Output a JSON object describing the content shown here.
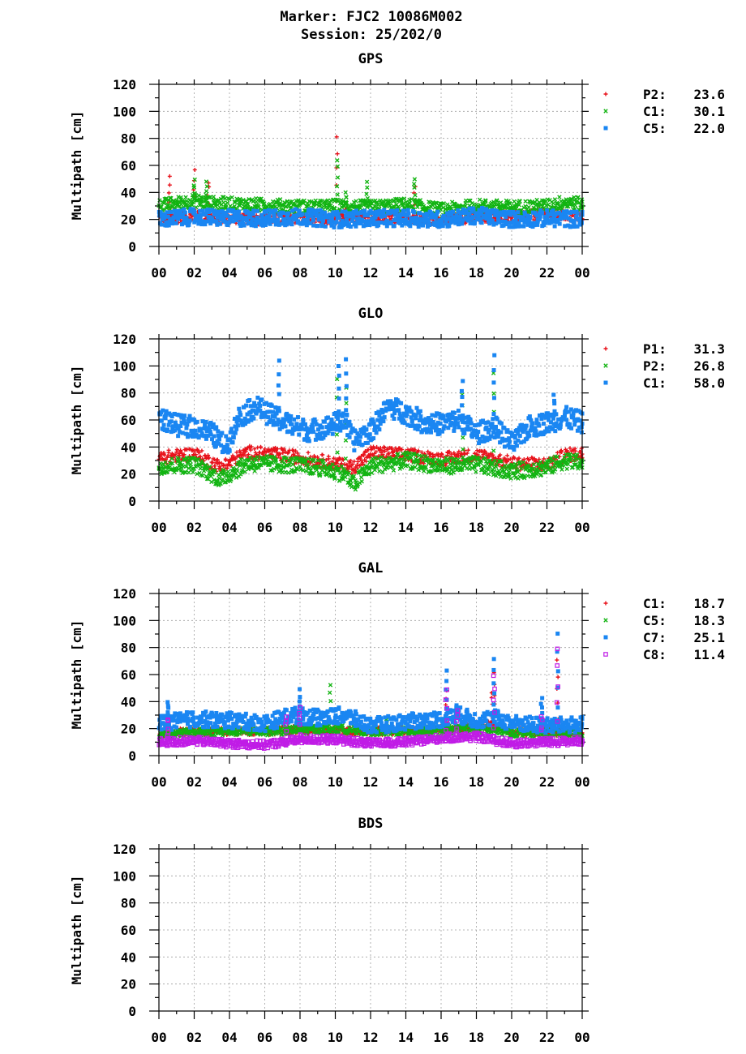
{
  "header": {
    "title": "Marker: FJC2 10086M002",
    "subtitle": "Session: 25/202/0"
  },
  "colors": {
    "red": "#e8121b",
    "green": "#12b412",
    "blue": "#1a86f2",
    "magenta": "#c01ce6"
  },
  "chart_data": [
    {
      "type": "scatter",
      "title": "GPS",
      "ylabel": "Multipath [cm]",
      "xlabel": "",
      "ylim": [
        0,
        120
      ],
      "xlim": [
        0,
        24
      ],
      "yticks": [
        "0",
        "20",
        "40",
        "60",
        "80",
        "100",
        "120"
      ],
      "xticks": [
        "00",
        "02",
        "04",
        "06",
        "08",
        "10",
        "12",
        "14",
        "16",
        "18",
        "20",
        "22",
        "00"
      ],
      "grid": true,
      "legend_position": "right",
      "series": [
        {
          "name": "P2:",
          "value_label": "23.6",
          "marker": "plus",
          "color": "#e8121b",
          "baseline": [
            [
              0,
              21
            ],
            [
              2,
              22
            ],
            [
              4,
              21
            ],
            [
              6,
              20
            ],
            [
              8,
              21
            ],
            [
              10,
              20
            ],
            [
              12,
              22
            ],
            [
              14,
              21
            ],
            [
              16,
              19
            ],
            [
              18,
              22
            ],
            [
              20,
              22
            ],
            [
              22,
              24
            ],
            [
              24,
              22
            ]
          ],
          "spread": 4,
          "spikes": [
            [
              0.6,
              51
            ],
            [
              2.0,
              56
            ],
            [
              2.8,
              48
            ],
            [
              10.1,
              82
            ],
            [
              10.6,
              28
            ],
            [
              14.5,
              45
            ]
          ]
        },
        {
          "name": "C1:",
          "value_label": "30.1",
          "marker": "cross",
          "color": "#12b412",
          "baseline": [
            [
              0,
              30
            ],
            [
              2,
              34
            ],
            [
              3,
              32
            ],
            [
              5,
              31
            ],
            [
              7,
              30
            ],
            [
              9,
              29
            ],
            [
              10,
              30
            ],
            [
              12,
              29
            ],
            [
              14,
              31
            ],
            [
              16,
              27
            ],
            [
              18,
              30
            ],
            [
              20,
              29
            ],
            [
              22,
              30
            ],
            [
              23,
              33
            ],
            [
              24,
              31
            ]
          ],
          "spread": 5,
          "spikes": [
            [
              2.0,
              49
            ],
            [
              2.7,
              48
            ],
            [
              10.1,
              65
            ],
            [
              10.6,
              40
            ],
            [
              11.8,
              47
            ],
            [
              14.5,
              51
            ]
          ]
        },
        {
          "name": "C5:",
          "value_label": "22.0",
          "marker": "square",
          "color": "#1a86f2",
          "baseline": [
            [
              0,
              20
            ],
            [
              2,
              22
            ],
            [
              4,
              21
            ],
            [
              6,
              21
            ],
            [
              8,
              22
            ],
            [
              10,
              20
            ],
            [
              12,
              21
            ],
            [
              14,
              21
            ],
            [
              16,
              20
            ],
            [
              18,
              23
            ],
            [
              20,
              20
            ],
            [
              22,
              21
            ],
            [
              24,
              20
            ]
          ],
          "spread": 6,
          "spikes": []
        }
      ]
    },
    {
      "type": "scatter",
      "title": "GLO",
      "ylabel": "Multipath [cm]",
      "xlabel": "",
      "ylim": [
        0,
        120
      ],
      "xlim": [
        0,
        24
      ],
      "yticks": [
        "0",
        "20",
        "40",
        "60",
        "80",
        "100",
        "120"
      ],
      "xticks": [
        "00",
        "02",
        "04",
        "06",
        "08",
        "10",
        "12",
        "14",
        "16",
        "18",
        "20",
        "22",
        "00"
      ],
      "grid": true,
      "legend_position": "right",
      "series": [
        {
          "name": "P1:",
          "value_label": "31.3",
          "marker": "plus",
          "color": "#e8121b",
          "baseline": [
            [
              0,
              32
            ],
            [
              2,
              35
            ],
            [
              3.5,
              25
            ],
            [
              5,
              36
            ],
            [
              7,
              34
            ],
            [
              9,
              30
            ],
            [
              11,
              25
            ],
            [
              12,
              36
            ],
            [
              14,
              34
            ],
            [
              16,
              31
            ],
            [
              18,
              34
            ],
            [
              20,
              28
            ],
            [
              22,
              27
            ],
            [
              23,
              34
            ],
            [
              24,
              35
            ]
          ],
          "spread": 5,
          "spikes": []
        },
        {
          "name": "P2:",
          "value_label": "26.8",
          "marker": "cross",
          "color": "#12b412",
          "baseline": [
            [
              0,
              26
            ],
            [
              2,
              27
            ],
            [
              3.5,
              16
            ],
            [
              5,
              28
            ],
            [
              7,
              27
            ],
            [
              9,
              25
            ],
            [
              10.5,
              20
            ],
            [
              11,
              12
            ],
            [
              12,
              26
            ],
            [
              14,
              30
            ],
            [
              16,
              26
            ],
            [
              18,
              27
            ],
            [
              20,
              22
            ],
            [
              22,
              25
            ],
            [
              23,
              30
            ],
            [
              24,
              28
            ]
          ],
          "spread": 6,
          "spikes": [
            [
              10.1,
              90
            ],
            [
              10.6,
              85
            ],
            [
              17.2,
              80
            ],
            [
              19.0,
              95
            ]
          ]
        },
        {
          "name": "C1:",
          "value_label": "58.0",
          "marker": "square",
          "color": "#1a86f2",
          "baseline": [
            [
              0,
              62
            ],
            [
              1,
              56
            ],
            [
              2,
              55
            ],
            [
              3,
              50
            ],
            [
              3.8,
              40
            ],
            [
              4.5,
              62
            ],
            [
              5.5,
              70
            ],
            [
              6.5,
              62
            ],
            [
              7.5,
              56
            ],
            [
              8.5,
              52
            ],
            [
              9.5,
              55
            ],
            [
              10.5,
              60
            ],
            [
              11,
              45
            ],
            [
              12,
              52
            ],
            [
              13,
              70
            ],
            [
              14,
              65
            ],
            [
              15,
              58
            ],
            [
              16,
              57
            ],
            [
              17,
              60
            ],
            [
              18,
              50
            ],
            [
              19,
              55
            ],
            [
              20,
              42
            ],
            [
              21,
              55
            ],
            [
              22,
              58
            ],
            [
              23,
              62
            ],
            [
              24,
              58
            ]
          ],
          "spread": 8,
          "spikes": [
            [
              6.8,
              104
            ],
            [
              10.2,
              100
            ],
            [
              10.6,
              105
            ],
            [
              17.2,
              88
            ],
            [
              19.0,
              107
            ],
            [
              22.4,
              79
            ]
          ]
        }
      ]
    },
    {
      "type": "scatter",
      "title": "GAL",
      "ylabel": "Multipath [cm]",
      "xlabel": "",
      "ylim": [
        0,
        120
      ],
      "xlim": [
        0,
        24
      ],
      "yticks": [
        "0",
        "20",
        "40",
        "60",
        "80",
        "100",
        "120"
      ],
      "xticks": [
        "00",
        "02",
        "04",
        "06",
        "08",
        "10",
        "12",
        "14",
        "16",
        "18",
        "20",
        "22",
        "00"
      ],
      "grid": true,
      "legend_position": "right",
      "series": [
        {
          "name": "C1:",
          "value_label": "18.7",
          "marker": "plus",
          "color": "#e8121b",
          "baseline": [
            [
              0,
              17
            ],
            [
              4,
              18
            ],
            [
              8,
              19
            ],
            [
              12,
              18
            ],
            [
              16,
              19
            ],
            [
              18,
              21
            ],
            [
              19,
              23
            ],
            [
              20,
              18
            ],
            [
              24,
              17
            ]
          ],
          "spread": 3,
          "spikes": [
            [
              16.3,
              48
            ],
            [
              18.9,
              48
            ],
            [
              19.0,
              60
            ],
            [
              22.6,
              70
            ]
          ]
        },
        {
          "name": "C5:",
          "value_label": "18.3",
          "marker": "cross",
          "color": "#12b412",
          "baseline": [
            [
              0,
              16
            ],
            [
              2,
              17
            ],
            [
              4,
              18
            ],
            [
              6,
              18
            ],
            [
              8,
              19
            ],
            [
              10,
              20
            ],
            [
              12,
              18
            ],
            [
              14,
              18
            ],
            [
              16,
              19
            ],
            [
              18,
              20
            ],
            [
              20,
              17
            ],
            [
              22,
              17
            ],
            [
              24,
              17
            ]
          ],
          "spread": 3,
          "spikes": [
            [
              9.7,
              52
            ],
            [
              12.9,
              28
            ]
          ]
        },
        {
          "name": "C7:",
          "value_label": "25.1",
          "marker": "square",
          "color": "#1a86f2",
          "baseline": [
            [
              0,
              24
            ],
            [
              2,
              27
            ],
            [
              4,
              26
            ],
            [
              6,
              24
            ],
            [
              7.5,
              30
            ],
            [
              9,
              28
            ],
            [
              10.5,
              30
            ],
            [
              12,
              22
            ],
            [
              14,
              25
            ],
            [
              16,
              27
            ],
            [
              17,
              30
            ],
            [
              18,
              26
            ],
            [
              19,
              28
            ],
            [
              20,
              24
            ],
            [
              22,
              22
            ],
            [
              24,
              23
            ]
          ],
          "spread": 6,
          "spikes": [
            [
              0.5,
              40
            ],
            [
              8.0,
              48
            ],
            [
              16.3,
              62
            ],
            [
              16.9,
              36
            ],
            [
              19.0,
              72
            ],
            [
              21.7,
              44
            ],
            [
              22.6,
              90
            ]
          ]
        },
        {
          "name": "C8:",
          "value_label": "11.4",
          "marker": "open-square",
          "color": "#c01ce6",
          "baseline": [
            [
              0,
              10
            ],
            [
              2,
              11
            ],
            [
              4,
              9
            ],
            [
              6,
              8
            ],
            [
              8,
              12
            ],
            [
              10,
              12
            ],
            [
              12,
              9
            ],
            [
              14,
              10
            ],
            [
              16,
              13
            ],
            [
              18,
              14
            ],
            [
              20,
              9
            ],
            [
              22,
              10
            ],
            [
              24,
              11
            ]
          ],
          "spread": 3,
          "spikes": [
            [
              0.5,
              28
            ],
            [
              7.2,
              30
            ],
            [
              8.0,
              36
            ],
            [
              16.3,
              48
            ],
            [
              16.9,
              33
            ],
            [
              19.0,
              60
            ],
            [
              21.7,
              30
            ],
            [
              22.6,
              80
            ]
          ]
        }
      ]
    },
    {
      "type": "scatter",
      "title": "BDS",
      "ylabel": "Multipath [cm]",
      "xlabel": "",
      "ylim": [
        0,
        120
      ],
      "xlim": [
        0,
        24
      ],
      "yticks": [
        "0",
        "20",
        "40",
        "60",
        "80",
        "100",
        "120"
      ],
      "xticks": [
        "00",
        "02",
        "04",
        "06",
        "08",
        "10",
        "12",
        "14",
        "16",
        "18",
        "20",
        "22",
        "00"
      ],
      "grid": true,
      "legend_position": "right",
      "series": []
    }
  ]
}
